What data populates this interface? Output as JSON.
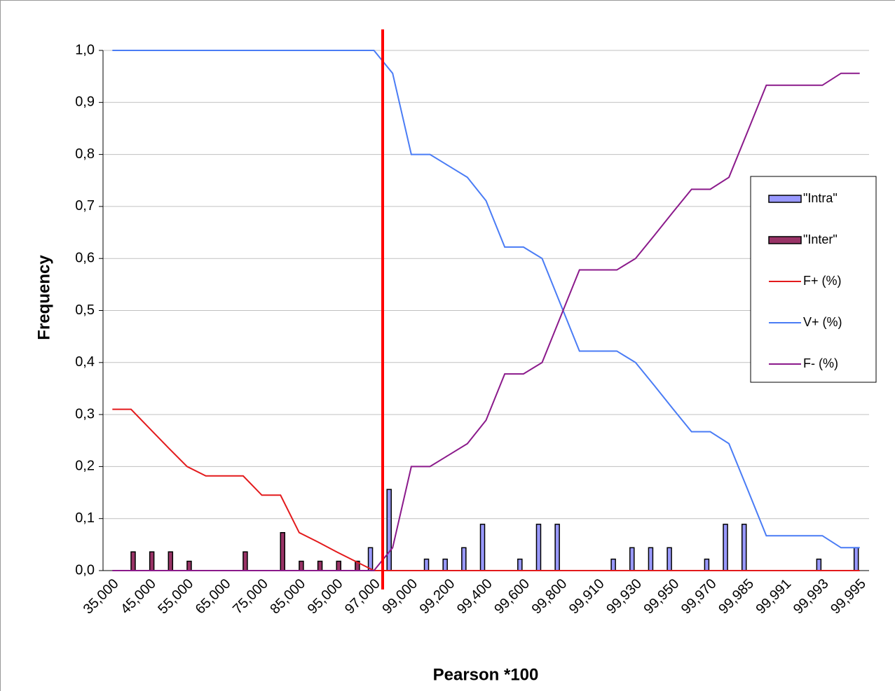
{
  "chart_data": {
    "type": "bar",
    "x_label": "Pearson *100",
    "y_label": "Frequency",
    "categories": [
      "35,000",
      null,
      "45,000",
      null,
      "55,000",
      null,
      "65,000",
      null,
      "75,000",
      null,
      "85,000",
      null,
      "95,000",
      null,
      "97,000",
      null,
      "99,000",
      null,
      "99,200",
      null,
      "99,400",
      null,
      "99,600",
      null,
      "99,800",
      null,
      "99,910",
      null,
      "99,930",
      null,
      "99,950",
      null,
      "99,970",
      null,
      "99,985",
      null,
      "99,991",
      null,
      "99,993",
      null,
      "99,995"
    ],
    "series": [
      {
        "name": "\"Intra\"",
        "type": "bar",
        "color": "#9999ff",
        "values": [
          0,
          0,
          0,
          0,
          0,
          0,
          0,
          0,
          0,
          0,
          0,
          0,
          0,
          0,
          0.044,
          0.156,
          0,
          0.022,
          0.022,
          0.044,
          0.089,
          0,
          0.022,
          0.089,
          0.089,
          0,
          0,
          0.022,
          0.044,
          0.044,
          0.044,
          0,
          0.022,
          0.089,
          0.089,
          0,
          0,
          0,
          0.022,
          0,
          0.044
        ]
      },
      {
        "name": "\"Inter\"",
        "type": "bar",
        "color": "#993366",
        "values": [
          0,
          0.036,
          0.036,
          0.036,
          0.018,
          0,
          0,
          0.036,
          0,
          0.073,
          0.018,
          0.018,
          0.018,
          0.018,
          0,
          0,
          0,
          0,
          0,
          0,
          0,
          0,
          0,
          0,
          0,
          0,
          0,
          0,
          0,
          0,
          0,
          0,
          0,
          0,
          0,
          0,
          0,
          0,
          0,
          0,
          0
        ]
      },
      {
        "name": "F+ (%)",
        "type": "line",
        "color": "#e31a1c",
        "values": [
          0.31,
          0.31,
          0.273,
          0.236,
          0.2,
          0.182,
          0.182,
          0.182,
          0.145,
          0.145,
          0.073,
          0.055,
          0.036,
          0.018,
          0,
          0,
          0,
          0,
          0,
          0,
          0,
          0,
          0,
          0,
          0,
          0,
          0,
          0,
          0,
          0,
          0,
          0,
          0,
          0,
          0,
          0,
          0,
          0,
          0,
          0,
          0
        ]
      },
      {
        "name": "V+ (%)",
        "type": "line",
        "color": "#4a7cf5",
        "values": [
          1,
          1,
          1,
          1,
          1,
          1,
          1,
          1,
          1,
          1,
          1,
          1,
          1,
          1,
          1,
          0.956,
          0.8,
          0.8,
          0.778,
          0.756,
          0.711,
          0.622,
          0.622,
          0.6,
          0.511,
          0.422,
          0.422,
          0.422,
          0.4,
          0.356,
          0.311,
          0.267,
          0.267,
          0.244,
          0.156,
          0.067,
          0.067,
          0.067,
          0.067,
          0.044,
          0.044
        ]
      },
      {
        "name": "F- (%)",
        "type": "line",
        "color": "#8b1a8b",
        "values": [
          0,
          0,
          0,
          0,
          0,
          0,
          0,
          0,
          0,
          0,
          0,
          0,
          0,
          0,
          0,
          0.044,
          0.2,
          0.2,
          0.222,
          0.244,
          0.289,
          0.378,
          0.378,
          0.4,
          0.489,
          0.578,
          0.578,
          0.578,
          0.6,
          0.644,
          0.689,
          0.733,
          0.733,
          0.756,
          0.844,
          0.933,
          0.933,
          0.933,
          0.933,
          0.956,
          0.956
        ]
      }
    ],
    "ylim": [
      0,
      1
    ],
    "yticks": [
      {
        "value": 0,
        "label": "0,0"
      },
      {
        "value": 0.1,
        "label": "0,1"
      },
      {
        "value": 0.2,
        "label": "0,2"
      },
      {
        "value": 0.3,
        "label": "0,3"
      },
      {
        "value": 0.4,
        "label": "0,4"
      },
      {
        "value": 0.5,
        "label": "0,5"
      },
      {
        "value": 0.6,
        "label": "0,6"
      },
      {
        "value": 0.7,
        "label": "0,7"
      },
      {
        "value": 0.8,
        "label": "0,8"
      },
      {
        "value": 0.9,
        "label": "0,9"
      },
      {
        "value": 1,
        "label": "1,0"
      }
    ],
    "grid": true,
    "legend": "right"
  }
}
